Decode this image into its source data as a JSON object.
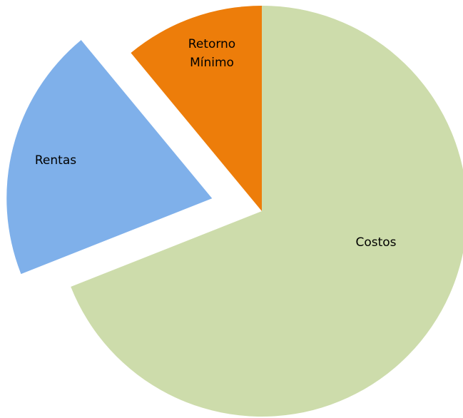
{
  "chart_data": {
    "type": "pie",
    "categories": [
      "Costos",
      "Rentas",
      "Retorno Mínimo"
    ],
    "values": [
      69,
      20,
      11
    ],
    "colors": [
      "#cddcab",
      "#7fb0ea",
      "#ed7d0a"
    ],
    "explode": [
      0,
      0.25,
      0
    ],
    "start_angle": 0,
    "direction": "clockwise"
  }
}
